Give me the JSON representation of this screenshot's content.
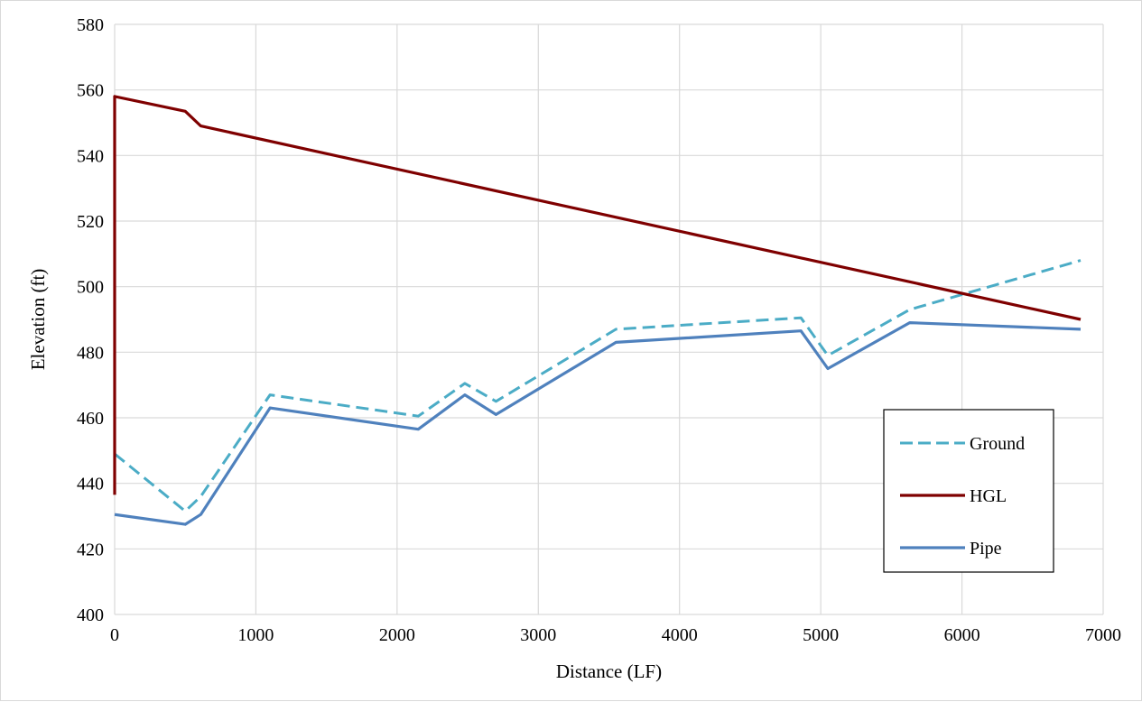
{
  "chart_data": {
    "type": "line",
    "title": "",
    "xlabel": "Distance (LF)",
    "ylabel": "Elevation (ft)",
    "xlim": [
      0,
      7000
    ],
    "ylim": [
      400,
      580
    ],
    "xticks": [
      0,
      1000,
      2000,
      3000,
      4000,
      5000,
      6000,
      7000
    ],
    "yticks": [
      400,
      420,
      440,
      460,
      480,
      500,
      520,
      540,
      560,
      580
    ],
    "xtick_labels": [
      "0",
      "1000",
      "2000",
      "3000",
      "4000",
      "5000",
      "6000",
      "7000"
    ],
    "ytick_labels": [
      "400",
      "420",
      "440",
      "460",
      "480",
      "500",
      "520",
      "540",
      "560",
      "580"
    ],
    "grid": true,
    "legend_position": "bottom-right",
    "series": [
      {
        "name": "Ground",
        "color": "#4bacc6",
        "dash": "dashed",
        "x": [
          0,
          500,
          610,
          1100,
          2150,
          2480,
          2700,
          3550,
          4860,
          5050,
          5630,
          6840
        ],
        "y": [
          449,
          431.5,
          436,
          467,
          460.5,
          470.5,
          465,
          487,
          490.5,
          479,
          493,
          508
        ]
      },
      {
        "name": "HGL",
        "color": "#7f0000",
        "dash": "solid",
        "x": [
          0,
          0,
          500,
          610,
          6840
        ],
        "y": [
          436.5,
          558,
          553.5,
          549,
          490
        ]
      },
      {
        "name": "Pipe",
        "color": "#4f81bd",
        "dash": "solid",
        "x": [
          0,
          500,
          610,
          1100,
          2150,
          2480,
          2700,
          3550,
          4860,
          5050,
          5630,
          6840
        ],
        "y": [
          430.5,
          427.5,
          430.5,
          463,
          456.5,
          467,
          461,
          483,
          486.5,
          475,
          489,
          487
        ]
      }
    ]
  }
}
